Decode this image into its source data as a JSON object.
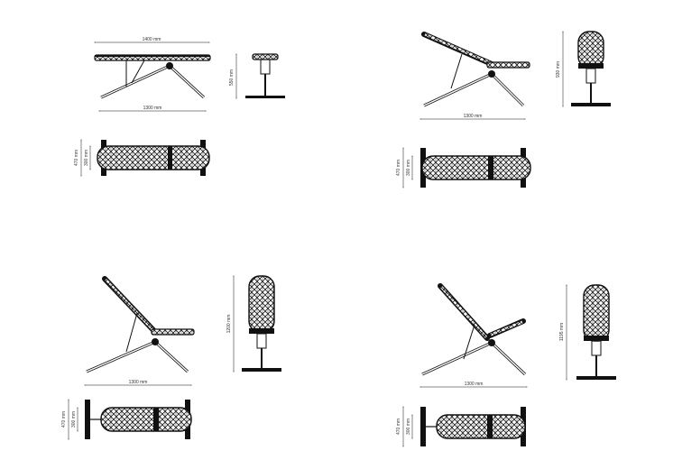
{
  "quadrants": [
    {
      "id": "flat",
      "side_top_dim": "1400 mm",
      "side_bottom_dim": "1300 mm",
      "front_height_dim": "550 mm",
      "top_outer_dim": "470 mm",
      "top_inner_dim": "300 mm"
    },
    {
      "id": "recline-low",
      "side_bottom_dim": "1300 mm",
      "front_height_dim": "930 mm",
      "top_outer_dim": "470 mm",
      "top_inner_dim": "300 mm"
    },
    {
      "id": "recline-mid",
      "side_bottom_dim": "1300 mm",
      "front_height_dim": "1200 mm",
      "top_outer_dim": "470 mm",
      "top_inner_dim": "300 mm"
    },
    {
      "id": "recline-high",
      "side_bottom_dim": "1300 mm",
      "front_height_dim": "1195 mm",
      "top_outer_dim": "470 mm",
      "top_inner_dim": "300 mm"
    }
  ]
}
